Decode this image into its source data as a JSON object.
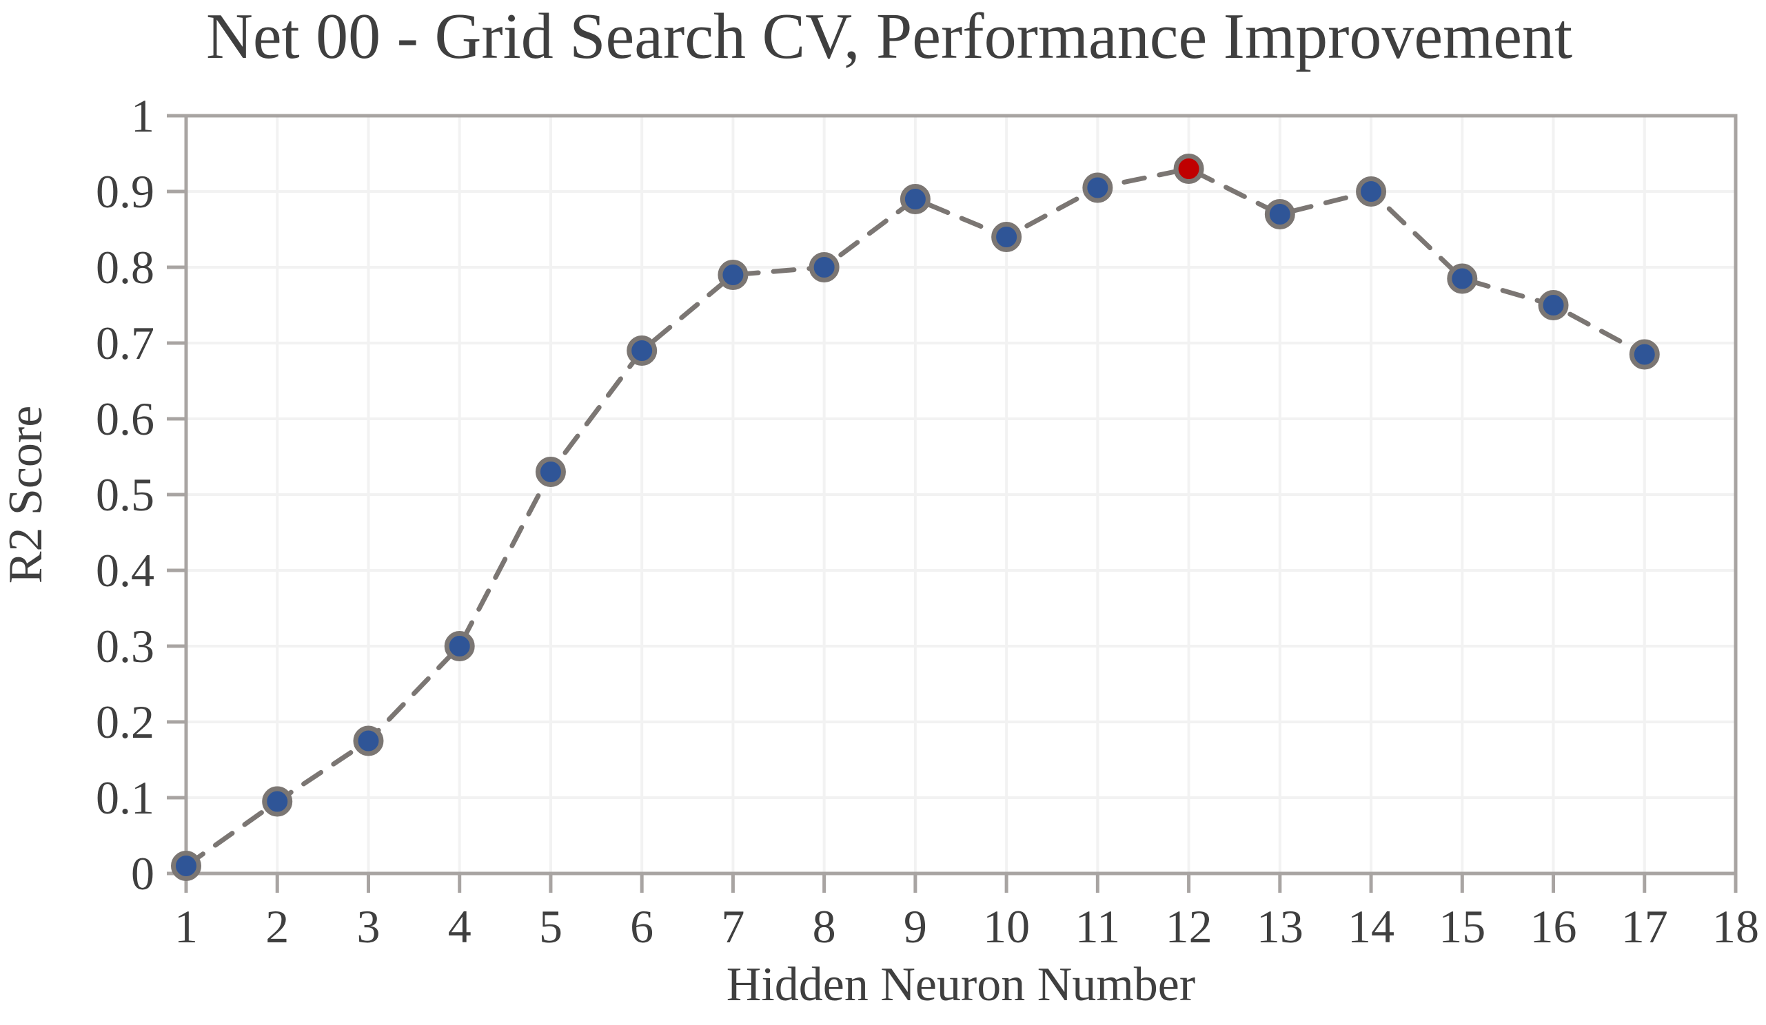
{
  "page": {
    "background": "#ffffff"
  },
  "chart_data": {
    "type": "line",
    "title": "Net 00 - Grid Search CV, Performance Improvement",
    "xlabel": "Hidden Neuron Number",
    "ylabel": "R2 Score",
    "x": [
      1,
      2,
      3,
      4,
      5,
      6,
      7,
      8,
      9,
      10,
      11,
      12,
      13,
      14,
      15,
      16,
      17
    ],
    "series": [
      {
        "name": "R2 Score",
        "values": [
          0.01,
          0.095,
          0.175,
          0.3,
          0.53,
          0.69,
          0.79,
          0.8,
          0.89,
          0.84,
          0.905,
          0.93,
          0.87,
          0.9,
          0.785,
          0.75,
          0.685
        ]
      }
    ],
    "highlight_x": 12,
    "xlim": [
      1,
      18
    ],
    "ylim": [
      0,
      1
    ],
    "x_ticks": [
      1,
      2,
      3,
      4,
      5,
      6,
      7,
      8,
      9,
      10,
      11,
      12,
      13,
      14,
      15,
      16,
      17,
      18
    ],
    "y_ticks": [
      0,
      0.1,
      0.2,
      0.3,
      0.4,
      0.5,
      0.6,
      0.7,
      0.8,
      0.9,
      1
    ],
    "y_tick_labels": [
      "0",
      "0.1",
      "0.2",
      "0.3",
      "0.4",
      "0.5",
      "0.6",
      "0.7",
      "0.8",
      "0.9",
      "1"
    ],
    "grid": true,
    "legend": "none",
    "line_style": "dashed",
    "colors": {
      "marker_fill": "#2F5597",
      "marker_fill_highlight": "#C00000",
      "marker_stroke": "#7B7673",
      "line": "#7B7673",
      "grid": "#F2F2F2",
      "axis": "#A8A4A2",
      "text": "#3F3F3F"
    }
  }
}
